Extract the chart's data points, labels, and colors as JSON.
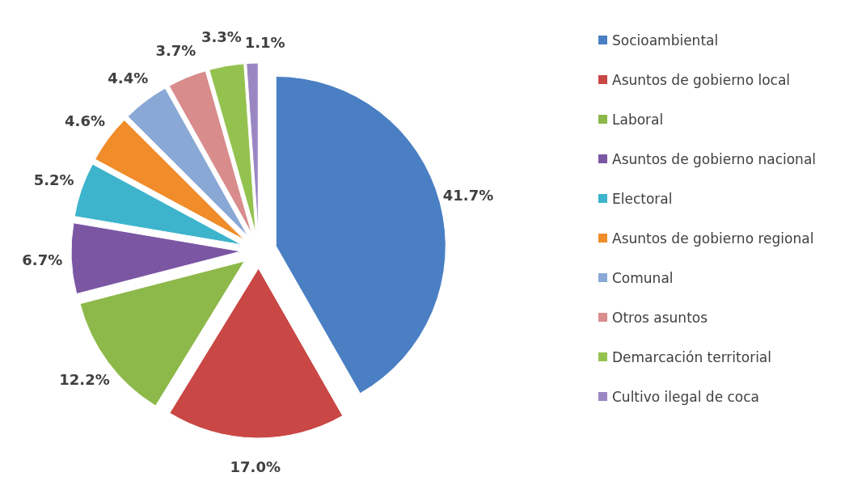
{
  "chart_data": {
    "type": "pie",
    "categories": [
      "Socioambiental",
      "Asuntos de gobierno local",
      "Laboral",
      "Asuntos de gobierno nacional",
      "Electoral",
      "Asuntos de gobierno regional",
      "Comunal",
      "Otros asuntos",
      "Demarcación territorial",
      "Cultivo ilegal de coca"
    ],
    "values": [
      41.7,
      17.0,
      12.2,
      6.7,
      5.2,
      4.6,
      4.4,
      3.7,
      3.3,
      1.1
    ],
    "value_labels": [
      "41.7%",
      "17.0%",
      "12.2%",
      "6.7%",
      "5.2%",
      "4.6%",
      "4.4%",
      "3.7%",
      "3.3%",
      "1.1%"
    ],
    "colors": [
      "#4a7fc4",
      "#c94744",
      "#8db84a",
      "#7a56a3",
      "#3db4cc",
      "#f08c2a",
      "#8aa8d6",
      "#d98c8c",
      "#93c24f",
      "#9a87c2"
    ],
    "legend": "right"
  }
}
